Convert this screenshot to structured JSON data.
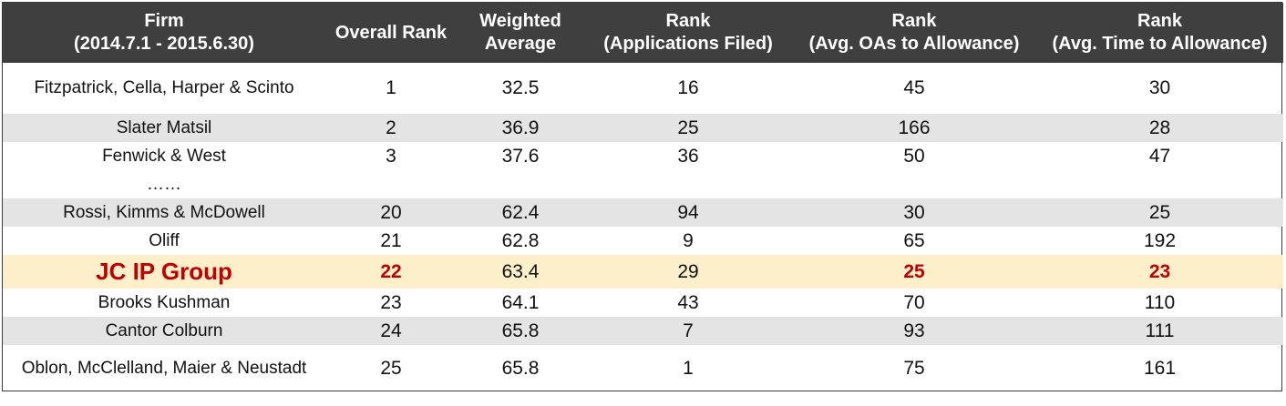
{
  "header": {
    "firm": [
      "Firm",
      "(2014.7.1 - 2015.6.30)"
    ],
    "overall": [
      "Overall Rank",
      ""
    ],
    "weighted": [
      "Weighted",
      "Average"
    ],
    "apps": [
      "Rank",
      "(Applications Filed)"
    ],
    "oas": [
      "Rank",
      "(Avg. OAs to Allowance)"
    ],
    "time": [
      "Rank",
      "(Avg. Time to Allowance)"
    ]
  },
  "rows": [
    {
      "firm": "Fitzpatrick, Cella, Harper & Scinto",
      "overall": "1",
      "weighted": "32.5",
      "apps": "16",
      "oas": "45",
      "time": "30"
    },
    {
      "firm": "Slater Matsil",
      "overall": "2",
      "weighted": "36.9",
      "apps": "25",
      "oas": "166",
      "time": "28"
    },
    {
      "firm": "Fenwick & West",
      "overall": "3",
      "weighted": "37.6",
      "apps": "36",
      "oas": "50",
      "time": "47"
    },
    {
      "firm": "……",
      "overall": "",
      "weighted": "",
      "apps": "",
      "oas": "",
      "time": ""
    },
    {
      "firm": "Rossi, Kimms & McDowell",
      "overall": "20",
      "weighted": "62.4",
      "apps": "94",
      "oas": "30",
      "time": "25"
    },
    {
      "firm": "Oliff",
      "overall": "21",
      "weighted": "62.8",
      "apps": "9",
      "oas": "65",
      "time": "192"
    },
    {
      "firm": "JC IP Group",
      "overall": "22",
      "weighted": "63.4",
      "apps": "29",
      "oas": "25",
      "time": "23"
    },
    {
      "firm": "Brooks Kushman",
      "overall": "23",
      "weighted": "64.1",
      "apps": "43",
      "oas": "70",
      "time": "110"
    },
    {
      "firm": "Cantor Colburn",
      "overall": "24",
      "weighted": "65.8",
      "apps": "7",
      "oas": "93",
      "time": "111"
    },
    {
      "firm": "Oblon, McClelland, Maier & Neustadt",
      "overall": "25",
      "weighted": "65.8",
      "apps": "1",
      "oas": "75",
      "time": "161"
    }
  ],
  "colors": {
    "header_bg": "#3f3f3f",
    "shade": "#e4e4e4",
    "highlight": "#fdefc9",
    "accent_red": "#c00000"
  }
}
